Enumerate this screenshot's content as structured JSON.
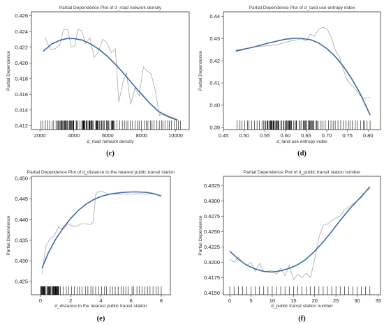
{
  "chart_data": [
    {
      "id": "c",
      "type": "line",
      "title": "Partial Dependence Plot of d_road network density",
      "xlabel": "d_road network density",
      "ylabel": "Partial Dependence",
      "caption": "(c)",
      "xlim": [
        1500,
        10800
      ],
      "ylim": [
        0.4115,
        0.4265
      ],
      "xticks": [
        2000,
        4000,
        6000,
        8000,
        10000
      ],
      "yticks": [
        0.412,
        0.414,
        0.416,
        0.418,
        0.42,
        0.422,
        0.424,
        0.426
      ],
      "xtick_format": "int",
      "ytick_format": "3",
      "grid": false,
      "colors": {
        "raw": "#a8a8a8",
        "smooth": "#3b6aa5"
      },
      "series": [
        {
          "kind": "raw",
          "x": [
            2300,
            2600,
            2900,
            3150,
            3400,
            3650,
            3850,
            4050,
            4250,
            4450,
            4700,
            4950,
            5200,
            5450,
            5700,
            5950,
            6200,
            6450,
            6650,
            6900,
            7100,
            7350,
            7600,
            7850,
            8100,
            8300,
            8550,
            8800,
            9050,
            9300,
            9600,
            9900,
            10150
          ],
          "y": [
            0.4233,
            0.4217,
            0.4218,
            0.4222,
            0.4243,
            0.4242,
            0.422,
            0.4222,
            0.4243,
            0.4241,
            0.4225,
            0.4232,
            0.4207,
            0.4214,
            0.423,
            0.4226,
            0.4213,
            0.4218,
            0.415,
            0.4176,
            0.4188,
            0.4147,
            0.4168,
            0.4158,
            0.4195,
            0.419,
            0.4186,
            0.4165,
            0.4133,
            0.4135,
            0.4132,
            0.413,
            0.4127
          ]
        },
        {
          "kind": "smooth",
          "x": [
            2200,
            2700,
            3200,
            3600,
            4000,
            4500,
            5000,
            5500,
            6000,
            6500,
            7000,
            7500,
            8000,
            8500,
            9000,
            9500,
            10100
          ],
          "y": [
            0.4215,
            0.4224,
            0.4229,
            0.4231,
            0.4231,
            0.4229,
            0.4224,
            0.4217,
            0.4208,
            0.4197,
            0.4185,
            0.4172,
            0.416,
            0.4148,
            0.4138,
            0.4132,
            0.4127
          ]
        }
      ],
      "rug": {
        "from": 2000,
        "to": 10300,
        "count": 130,
        "dense_from": 3000,
        "dense_to": 6500
      }
    },
    {
      "id": "d",
      "type": "line",
      "title": "Partial Dependence Plot of d_land use entropy index",
      "xlabel": "d_land use entropy index",
      "ylabel": "Partial Dependence",
      "caption": "(d)",
      "xlim": [
        0.45,
        0.83
      ],
      "ylim": [
        0.389,
        0.442
      ],
      "xticks": [
        0.45,
        0.5,
        0.55,
        0.6,
        0.65,
        0.7,
        0.75,
        0.8
      ],
      "yticks": [
        0.39,
        0.4,
        0.41,
        0.42,
        0.43,
        0.44
      ],
      "xtick_format": "2",
      "ytick_format": "2",
      "grid": false,
      "colors": {
        "raw": "#a8a8a8",
        "smooth": "#3b6aa5"
      },
      "series": [
        {
          "kind": "raw",
          "x": [
            0.48,
            0.5,
            0.52,
            0.54,
            0.56,
            0.58,
            0.6,
            0.62,
            0.64,
            0.65,
            0.66,
            0.67,
            0.68,
            0.69,
            0.7,
            0.71,
            0.72,
            0.73,
            0.74,
            0.75,
            0.76,
            0.77,
            0.78,
            0.79,
            0.805
          ],
          "y": [
            0.424,
            0.425,
            0.4262,
            0.4265,
            0.4268,
            0.4272,
            0.4283,
            0.4292,
            0.4298,
            0.4288,
            0.432,
            0.431,
            0.434,
            0.435,
            0.4345,
            0.431,
            0.425,
            0.422,
            0.416,
            0.411,
            0.409,
            0.407,
            0.4045,
            0.403,
            0.4035
          ]
        },
        {
          "kind": "smooth",
          "x": [
            0.48,
            0.52,
            0.56,
            0.6,
            0.63,
            0.66,
            0.68,
            0.7,
            0.72,
            0.74,
            0.76,
            0.78,
            0.805
          ],
          "y": [
            0.4245,
            0.426,
            0.428,
            0.4297,
            0.4302,
            0.4295,
            0.428,
            0.4255,
            0.422,
            0.4175,
            0.412,
            0.4055,
            0.3955
          ]
        }
      ],
      "rug": {
        "from": 0.48,
        "to": 0.805,
        "count": 110,
        "dense_from": 0.55,
        "dense_to": 0.68
      }
    },
    {
      "id": "e",
      "type": "line",
      "title": "Partial Dependence Plot of d_distance to the nearest public transit station",
      "xlabel": "d_distance to the nearest public transit station",
      "ylabel": "Partial Dependence",
      "caption": "(e)",
      "xlim": [
        -0.6,
        8.6
      ],
      "ylim": [
        0.4218,
        0.4505
      ],
      "xticks": [
        0,
        2,
        4,
        6,
        8
      ],
      "yticks": [
        0.425,
        0.43,
        0.435,
        0.44,
        0.445,
        0.45
      ],
      "xtick_format": "int",
      "ytick_format": "3",
      "grid": false,
      "colors": {
        "raw": "#a8a8a8",
        "smooth": "#3b6aa5"
      },
      "series": [
        {
          "kind": "raw",
          "x": [
            0.1,
            0.35,
            0.6,
            0.9,
            1.2,
            1.5,
            1.8,
            2.1,
            2.4,
            2.7,
            3.0,
            3.3,
            3.5,
            3.65,
            3.8,
            4.1,
            4.5,
            5.0,
            5.5,
            6.0,
            6.5,
            7.0,
            7.5,
            8.0
          ],
          "y": [
            0.4268,
            0.4335,
            0.4352,
            0.436,
            0.4382,
            0.4376,
            0.439,
            0.4385,
            0.4384,
            0.439,
            0.439,
            0.4388,
            0.4395,
            0.446,
            0.4468,
            0.4468,
            0.4462,
            0.4462,
            0.4462,
            0.4462,
            0.4463,
            0.4462,
            0.4462,
            0.4458
          ]
        },
        {
          "kind": "smooth",
          "x": [
            0.1,
            0.5,
            1.0,
            1.5,
            2.0,
            2.5,
            3.0,
            3.5,
            4.0,
            4.5,
            5.0,
            5.5,
            6.0,
            6.5,
            7.0,
            7.5,
            8.0
          ],
          "y": [
            0.4282,
            0.4318,
            0.4352,
            0.438,
            0.4403,
            0.4422,
            0.4437,
            0.4448,
            0.4456,
            0.4461,
            0.4464,
            0.4466,
            0.4467,
            0.4467,
            0.4466,
            0.4463,
            0.4457
          ]
        }
      ],
      "rug": {
        "from": 0.0,
        "to": 8.0,
        "count": 90,
        "dense_from": 0.0,
        "dense_to": 1.2
      }
    },
    {
      "id": "f",
      "type": "line",
      "title": "Partial Dependence Plot of d_public transit station number",
      "xlabel": "d_public transit station number",
      "ylabel": "Partial Dependence",
      "caption": "(f)",
      "xlim": [
        -1.5,
        35.5
      ],
      "ylim": [
        0.4147,
        0.434
      ],
      "xticks": [
        0,
        5,
        10,
        15,
        20,
        25,
        30,
        35
      ],
      "yticks": [
        0.415,
        0.4175,
        0.42,
        0.4225,
        0.425,
        0.4275,
        0.43,
        0.4325
      ],
      "xtick_format": "int",
      "ytick_format": "4",
      "grid": false,
      "colors": {
        "raw": "#a8a8a8",
        "smooth": "#3b6aa5"
      },
      "series": [
        {
          "kind": "raw",
          "x": [
            0,
            1,
            2,
            3,
            4,
            5,
            6,
            7,
            8,
            9,
            10,
            11,
            12,
            13,
            14,
            15,
            16,
            17,
            18,
            19,
            20,
            21,
            22,
            23,
            24,
            25,
            26,
            27,
            28,
            29,
            30,
            31,
            32,
            33
          ],
          "y": [
            0.4205,
            0.42,
            0.4208,
            0.42,
            0.4195,
            0.42,
            0.4185,
            0.4198,
            0.4185,
            0.4185,
            0.4187,
            0.418,
            0.419,
            0.4178,
            0.4195,
            0.4172,
            0.418,
            0.4175,
            0.4182,
            0.4175,
            0.4205,
            0.424,
            0.426,
            0.4262,
            0.4268,
            0.4272,
            0.4275,
            0.4285,
            0.429,
            0.4295,
            0.43,
            0.4305,
            0.4315,
            0.432
          ]
        },
        {
          "kind": "smooth",
          "x": [
            0,
            2,
            4,
            6,
            8,
            10,
            12,
            14,
            16,
            18,
            20,
            22,
            24,
            26,
            28,
            30,
            32,
            33
          ],
          "y": [
            0.4218,
            0.4205,
            0.4195,
            0.4189,
            0.4185,
            0.4184,
            0.4186,
            0.419,
            0.4196,
            0.4205,
            0.4218,
            0.4233,
            0.425,
            0.4268,
            0.4285,
            0.43,
            0.4315,
            0.4323
          ]
        }
      ],
      "rug": {
        "from": 0,
        "to": 33,
        "count": 34,
        "dense_from": 0,
        "dense_to": 0
      }
    }
  ]
}
